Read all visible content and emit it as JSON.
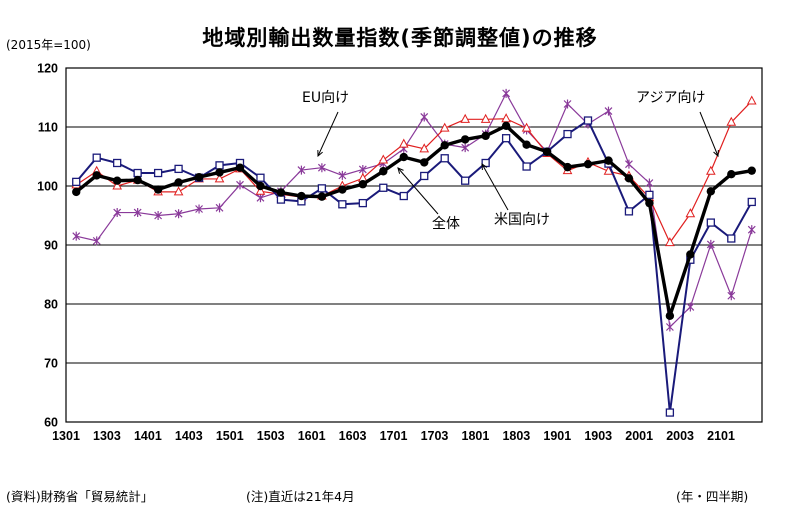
{
  "title": "地域別輸出数量指数(季節調整値)の推移",
  "base_note": "(2015年=100)",
  "source": "(資料)財務省「貿易統計」",
  "note": "(注)直近は21年4月",
  "unit": "(年・四半期)",
  "colors": {
    "total": "#000000",
    "usa": "#1a1a7a",
    "eu": "#8a3a9a",
    "asia": "#e02020"
  },
  "chart_data": {
    "type": "line",
    "x": [
      "1301",
      "1302",
      "1303",
      "1304",
      "1401",
      "1402",
      "1403",
      "1404",
      "1501",
      "1502",
      "1503",
      "1504",
      "1601",
      "1602",
      "1603",
      "1604",
      "1701",
      "1702",
      "1703",
      "1704",
      "1801",
      "1802",
      "1803",
      "1804",
      "1901",
      "1902",
      "1903",
      "1904",
      "2001",
      "2002",
      "2003",
      "2004",
      "2101",
      "2102"
    ],
    "x_tick_labels": [
      "1301",
      "1303",
      "1401",
      "1403",
      "1501",
      "1503",
      "1601",
      "1603",
      "1701",
      "1703",
      "1801",
      "1803",
      "1901",
      "1903",
      "2001",
      "2003",
      "2101"
    ],
    "ylim": [
      60,
      120
    ],
    "y_ticks": [
      60,
      70,
      80,
      90,
      100,
      110,
      120
    ],
    "grid": true,
    "series": [
      {
        "name": "全体",
        "key": "total",
        "marker": "circle",
        "values": [
          99.0,
          101.8,
          100.9,
          101.0,
          99.4,
          100.6,
          101.5,
          102.3,
          103.1,
          100.0,
          98.9,
          98.3,
          98.2,
          99.4,
          100.3,
          102.5,
          104.9,
          104.0,
          106.9,
          107.9,
          108.5,
          110.2,
          107.0,
          105.8,
          103.2,
          103.7,
          104.3,
          101.3,
          97.1,
          78.0,
          88.4,
          99.1,
          102.0,
          102.6
        ]
      },
      {
        "name": "米国向け",
        "key": "usa",
        "marker": "square",
        "values": [
          100.7,
          104.8,
          103.9,
          102.2,
          102.2,
          102.9,
          101.4,
          103.5,
          103.9,
          101.4,
          97.7,
          97.4,
          99.6,
          96.9,
          97.1,
          99.7,
          98.3,
          101.7,
          104.7,
          100.9,
          103.9,
          108.1,
          103.3,
          105.8,
          108.8,
          111.1,
          103.8,
          95.7,
          98.5,
          61.6,
          87.5,
          93.8,
          91.1,
          97.3
        ]
      },
      {
        "name": "EU向け",
        "key": "eu",
        "marker": "star",
        "values": [
          91.5,
          90.7,
          95.5,
          95.5,
          95.0,
          95.3,
          96.1,
          96.3,
          100.2,
          98.0,
          99.1,
          102.7,
          103.1,
          101.8,
          102.8,
          103.8,
          106.3,
          111.7,
          107.1,
          106.5,
          108.8,
          115.7,
          109.5,
          105.8,
          113.9,
          110.5,
          112.7,
          103.7,
          100.5,
          76.1,
          79.5,
          90.1,
          81.4,
          92.6
        ]
      },
      {
        "name": "アジア向け",
        "key": "asia",
        "marker": "triangle",
        "values": [
          100.2,
          102.5,
          100.0,
          101.0,
          99.0,
          99.0,
          101.2,
          101.2,
          102.9,
          99.1,
          98.6,
          98.1,
          98.3,
          100.0,
          101.3,
          104.4,
          107.1,
          106.3,
          109.8,
          111.3,
          111.3,
          111.4,
          109.8,
          105.5,
          102.6,
          104.0,
          102.5,
          101.7,
          98.0,
          90.4,
          95.3,
          102.5,
          110.8,
          114.4
        ]
      }
    ],
    "annotations": [
      {
        "text": "EU向け",
        "series": "eu"
      },
      {
        "text": "アジア向け",
        "series": "asia"
      },
      {
        "text": "全体",
        "series": "total"
      },
      {
        "text": "米国向け",
        "series": "usa"
      }
    ]
  }
}
